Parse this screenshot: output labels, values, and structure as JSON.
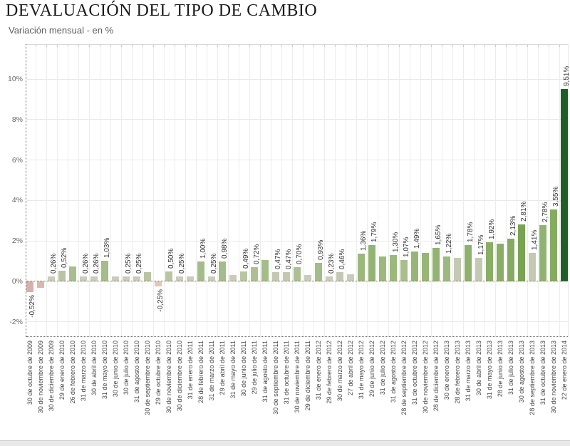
{
  "header": {
    "title": "DEVALUACIÓN DEL TIPO DE CAMBIO",
    "subtitle": "Variación mensual - en %"
  },
  "chart_data": {
    "type": "bar",
    "title": "DEVALUACIÓN DEL TIPO DE CAMBIO",
    "subtitle": "Variación mensual - en %",
    "xlabel": "",
    "ylabel": "",
    "ylim": [
      -2.75,
      11.7
    ],
    "grid": true,
    "legend": "none",
    "yticks": [
      10,
      8,
      6,
      4,
      2,
      0,
      -2
    ],
    "ytick_labels": [
      "10%",
      "8%",
      "6%",
      "4%",
      "2%",
      "0%",
      "-2%"
    ],
    "colors": {
      "zero_line": "#aa4f43",
      "axis_dotted": "#6a6a6a",
      "grid": "#e9e9e9",
      "value_label": "#333333",
      "date_label": "#474747",
      "ytick_label": "#666666",
      "max_bar": "#1e5f27",
      "negative_bar": "#d4b1ab",
      "footer": "#e9e9e9"
    },
    "bars": [
      {
        "date": "30 de octubre de 2009",
        "value": -0.52,
        "label": "-0,52%",
        "color": "#d4b1ab"
      },
      {
        "date": "30 de noviembre de 2009",
        "value": -0.32,
        "label": "",
        "color": "#d7b8b1"
      },
      {
        "date": "30 de diciembre de 2009",
        "value": 0.26,
        "label": "0,26%",
        "color": "#c8ccbb"
      },
      {
        "date": "29 de enero de 2010",
        "value": 0.52,
        "label": "0,52%",
        "color": "#b8c4a4"
      },
      {
        "date": "26 de febrero de 2010",
        "value": 0.75,
        "label": "",
        "color": "#a9be8f"
      },
      {
        "date": "31 de marzo de 2010",
        "value": 0.26,
        "label": "0,26%",
        "color": "#c8ccbb"
      },
      {
        "date": "30 de abril de 2010",
        "value": 0.26,
        "label": "0,26%",
        "color": "#c8ccbb"
      },
      {
        "date": "31 de mayo de 2010",
        "value": 1.03,
        "label": "1,03%",
        "color": "#a4bc89"
      },
      {
        "date": "30 de junio de 2010",
        "value": 0.25,
        "label": "",
        "color": "#c8ccbb"
      },
      {
        "date": "30 de julio de 2010",
        "value": 0.25,
        "label": "0,25%",
        "color": "#c8ccbb"
      },
      {
        "date": "31 de agosto de 2010",
        "value": 0.25,
        "label": "0,25%",
        "color": "#c8ccbb"
      },
      {
        "date": "30 de septiembre de 2010",
        "value": 0.45,
        "label": "",
        "color": "#b8c4a4"
      },
      {
        "date": "29 de octubre de 2010",
        "value": -0.25,
        "label": "-0,25%",
        "color": "#e0c6bf"
      },
      {
        "date": "30 de noviembre de 2010",
        "value": 0.5,
        "label": "0,50%",
        "color": "#b8c4a4"
      },
      {
        "date": "30 de diciembre de 2010",
        "value": 0.25,
        "label": "0,25%",
        "color": "#c8ccbb"
      },
      {
        "date": "31 de enero de 2011",
        "value": 0.25,
        "label": "",
        "color": "#c8ccbb"
      },
      {
        "date": "28 de febrero de 2011",
        "value": 1.0,
        "label": "1,00%",
        "color": "#a4bc89"
      },
      {
        "date": "31 de marzo de 2011",
        "value": 0.25,
        "label": "0,25%",
        "color": "#c8ccbb"
      },
      {
        "date": "29 de abril de 2011",
        "value": 0.98,
        "label": "0,98%",
        "color": "#a4bc89"
      },
      {
        "date": "31 de mayo de 2011",
        "value": 0.3,
        "label": "",
        "color": "#c8ccbb"
      },
      {
        "date": "30 de junio de 2011",
        "value": 0.49,
        "label": "0,49%",
        "color": "#b8c4a4"
      },
      {
        "date": "29 de julio de 2011",
        "value": 0.72,
        "label": "0,72%",
        "color": "#adc094"
      },
      {
        "date": "31 de agosto de 2011",
        "value": 1.05,
        "label": "",
        "color": "#a4bc89"
      },
      {
        "date": "30 de septiembre de 2011",
        "value": 0.47,
        "label": "0,47%",
        "color": "#c2c9b2"
      },
      {
        "date": "31 de octubre de 2011",
        "value": 0.47,
        "label": "0,47%",
        "color": "#c2c9b2"
      },
      {
        "date": "30 de noviembre de 2011",
        "value": 0.7,
        "label": "0,70%",
        "color": "#adc094"
      },
      {
        "date": "29 de diciembre de 2011",
        "value": 0.3,
        "label": "",
        "color": "#c8ccbb"
      },
      {
        "date": "31 de enero de 2012",
        "value": 0.93,
        "label": "0,93%",
        "color": "#a4bc89"
      },
      {
        "date": "29 de febrero de 2012",
        "value": 0.23,
        "label": "0,23%",
        "color": "#c8ccbb"
      },
      {
        "date": "30 de marzo de 2012",
        "value": 0.46,
        "label": "0,46%",
        "color": "#c2c9b2"
      },
      {
        "date": "27 de abril de 2012",
        "value": 0.35,
        "label": "",
        "color": "#c8ccbb"
      },
      {
        "date": "31 de mayo de 2012",
        "value": 1.36,
        "label": "1,36%",
        "color": "#9bb87d"
      },
      {
        "date": "29 de junio de 2012",
        "value": 1.79,
        "label": "1,79%",
        "color": "#92b371"
      },
      {
        "date": "31 de julio de 2012",
        "value": 1.25,
        "label": "",
        "color": "#9bb87d"
      },
      {
        "date": "31 de agosto de 2012",
        "value": 1.3,
        "label": "1,30%",
        "color": "#9bb87d"
      },
      {
        "date": "28 de septiembre de 2012",
        "value": 1.07,
        "label": "1,07%",
        "color": "#a8be8d"
      },
      {
        "date": "31 de octubre de 2012",
        "value": 1.49,
        "label": "1,49%",
        "color": "#97b577"
      },
      {
        "date": "30 de noviembre de 2012",
        "value": 1.4,
        "label": "",
        "color": "#97b577"
      },
      {
        "date": "28 de diciembre de 2012",
        "value": 1.65,
        "label": "1,65%",
        "color": "#92b371"
      },
      {
        "date": "30 de enero de 2013",
        "value": 1.22,
        "label": "1,22%",
        "color": "#9cb97f"
      },
      {
        "date": "28 de febrero de 2013",
        "value": 1.15,
        "label": "",
        "color": "#c3c9b3"
      },
      {
        "date": "31 de marzo de 2013",
        "value": 1.78,
        "label": "1,78%",
        "color": "#8eb16d"
      },
      {
        "date": "30 de abril de 2013",
        "value": 1.17,
        "label": "1,17%",
        "color": "#c3c9b3"
      },
      {
        "date": "31 de mayo de 2013",
        "value": 1.92,
        "label": "1,92%",
        "color": "#8aae66"
      },
      {
        "date": "28 de junio de 2013",
        "value": 1.85,
        "label": "",
        "color": "#8aae66"
      },
      {
        "date": "31 de julio de 2013",
        "value": 2.13,
        "label": "2,13%",
        "color": "#84ab60"
      },
      {
        "date": "30 de agosto de 2013",
        "value": 2.81,
        "label": "2,81%",
        "color": "#77a352"
      },
      {
        "date": "28 de septiembre de 2013",
        "value": 1.41,
        "label": "1,41%",
        "color": "#c3c9b3"
      },
      {
        "date": "31 de octubre de 2013",
        "value": 2.78,
        "label": "2,78%",
        "color": "#90b372"
      },
      {
        "date": "30 de noviembre de 2013",
        "value": 3.55,
        "label": "3,55%",
        "color": "#85ab61"
      },
      {
        "date": "22 de enero de 2014",
        "value": 9.51,
        "label": "9,51%",
        "color": "#1e5f27"
      }
    ]
  }
}
